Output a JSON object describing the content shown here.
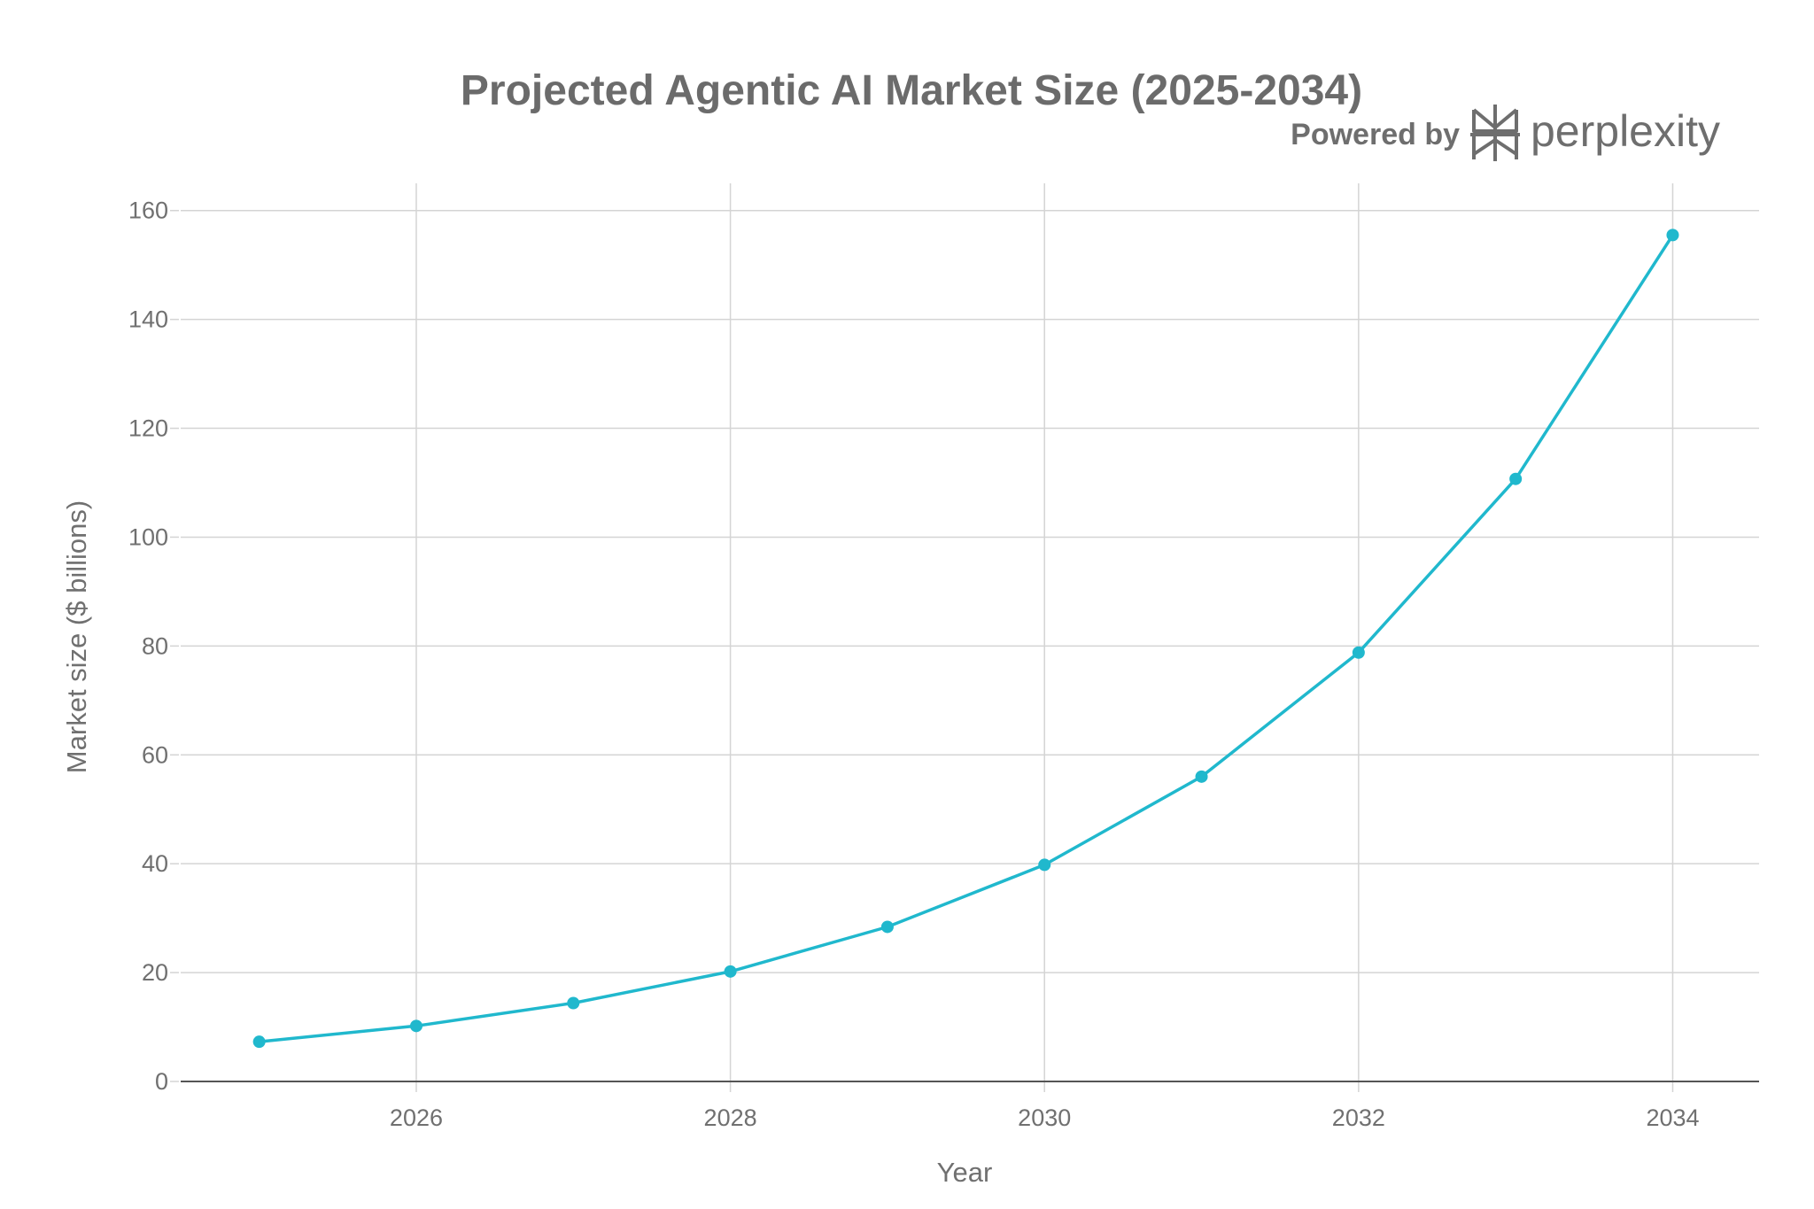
{
  "branding": {
    "powered_by": "Powered by",
    "name": "perplexity",
    "logo_icon": "perplexity-logo-icon"
  },
  "colors": {
    "series": "#20b8cd",
    "grid": "#d4d4d4",
    "axis": "#555555",
    "text": "#6b6b6b"
  },
  "chart_data": {
    "type": "line",
    "title": "Projected Agentic AI Market Size (2025-2034)",
    "xlabel": "Year",
    "ylabel": "Market size ($ billions)",
    "xlim": [
      2024.5,
      2034.55
    ],
    "ylim": [
      0,
      165
    ],
    "xticks": [
      2026,
      2028,
      2030,
      2032,
      2034
    ],
    "yticks": [
      0,
      20,
      40,
      60,
      80,
      100,
      120,
      140,
      160
    ],
    "grid": true,
    "legend": "none",
    "series": [
      {
        "x": [
          2025,
          2026,
          2027,
          2028,
          2029,
          2030,
          2031,
          2032,
          2033,
          2034
        ],
        "values": [
          7.3,
          10.2,
          14.4,
          20.2,
          28.4,
          39.8,
          56.0,
          78.8,
          110.7,
          155.5
        ]
      }
    ]
  }
}
